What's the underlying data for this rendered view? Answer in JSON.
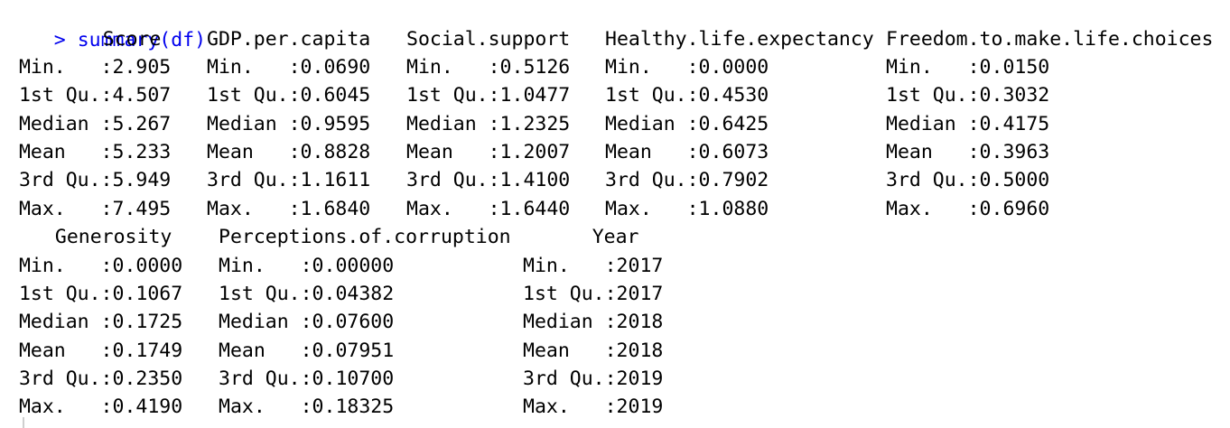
{
  "console": {
    "prompt_symbol": ">",
    "command": "summary(df)",
    "blocks": [
      {
        "headers": [
          "    Score    ",
          "GDP.per.capita",
          "Social.support",
          "Healthy.life.expectancy",
          "Freedom.to.make.life.choices"
        ],
        "rows": [
          [
            " Min.   :2.905  ",
            "Min.   :0.0690  ",
            "Min.   :0.5126  ",
            "Min.   :0.0000         ",
            "Min.   :0.0150              "
          ],
          [
            " 1st Qu.:4.507  ",
            "1st Qu.:0.6045  ",
            "1st Qu.:1.0477  ",
            "1st Qu.:0.4530         ",
            "1st Qu.:0.3032              "
          ],
          [
            " Median :5.267  ",
            "Median :0.9595  ",
            "Median :1.2325  ",
            "Median :0.6425         ",
            "Median :0.4175              "
          ],
          [
            " Mean   :5.233  ",
            "Mean   :0.8828  ",
            "Mean   :1.2007  ",
            "Mean   :0.6073         ",
            "Mean   :0.3963              "
          ],
          [
            " 3rd Qu.:5.949  ",
            "3rd Qu.:1.1611  ",
            "3rd Qu.:1.4100  ",
            "3rd Qu.:0.7902         ",
            "3rd Qu.:0.5000              "
          ],
          [
            " Max.   :7.495  ",
            "Max.   :1.6840  ",
            "Max.   :1.6440  ",
            "Max.   :1.0880         ",
            "Max.   :0.6960              "
          ]
        ]
      },
      {
        "headers": [
          "  Generosity    ",
          "Perceptions.of.corruption",
          "     Year    "
        ],
        "rows": [
          [
            " Min.   :0.0000  ",
            "Min.   :0.00000          ",
            "Min.   :2017  "
          ],
          [
            " 1st Qu.:0.1067  ",
            "1st Qu.:0.04382          ",
            "1st Qu.:2017  "
          ],
          [
            " Median :0.1725  ",
            "Median :0.07600          ",
            "Median :2018  "
          ],
          [
            " Mean   :0.1749  ",
            "Mean   :0.07951          ",
            "Mean   :2018  "
          ],
          [
            " 3rd Qu.:0.2350  ",
            "3rd Qu.:0.10700          ",
            "3rd Qu.:2019  "
          ],
          [
            " Max.   :0.4190  ",
            "Max.   :0.18325          ",
            "Max.   :2019  "
          ]
        ]
      }
    ]
  }
}
